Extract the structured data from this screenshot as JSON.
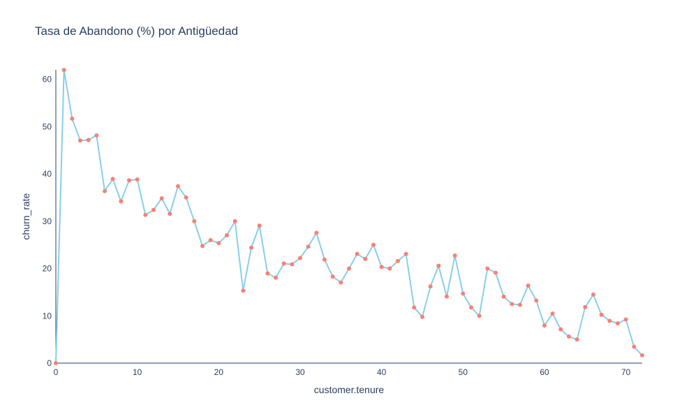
{
  "chart_data": {
    "type": "line",
    "title": "Tasa de Abandono (%) por Antigüedad",
    "xlabel": "customer.tenure",
    "ylabel": "churn_rate",
    "xlim": [
      0,
      72
    ],
    "ylim": [
      0,
      62
    ],
    "x_ticks": [
      0,
      10,
      20,
      30,
      40,
      50,
      60,
      70
    ],
    "y_ticks": [
      0,
      10,
      20,
      30,
      40,
      50,
      60
    ],
    "grid": false,
    "colors": {
      "line": "#87CEEB",
      "marker": "#FA8072",
      "text": "#2a3f5f",
      "axis": "#2a3f5f"
    },
    "x": [
      0,
      1,
      2,
      3,
      4,
      5,
      6,
      7,
      8,
      9,
      10,
      11,
      12,
      13,
      14,
      15,
      16,
      17,
      18,
      19,
      20,
      21,
      22,
      23,
      24,
      25,
      26,
      27,
      28,
      29,
      30,
      31,
      32,
      33,
      34,
      35,
      36,
      37,
      38,
      39,
      40,
      41,
      42,
      43,
      44,
      45,
      46,
      47,
      48,
      49,
      50,
      51,
      52,
      53,
      54,
      55,
      56,
      57,
      58,
      59,
      60,
      61,
      62,
      63,
      64,
      65,
      66,
      67,
      68,
      69,
      70,
      71,
      72
    ],
    "y": [
      0,
      61.99,
      51.68,
      47.06,
      47.16,
      48.15,
      36.36,
      38.93,
      34.19,
      38.64,
      38.82,
      31.34,
      32.39,
      34.84,
      31.55,
      37.4,
      35.0,
      30.0,
      24.77,
      26.0,
      25.38,
      27.03,
      30.0,
      15.32,
      24.42,
      29.07,
      18.97,
      18.06,
      21.05,
      20.88,
      22.22,
      24.63,
      27.55,
      21.88,
      18.29,
      17.05,
      20.0,
      23.08,
      22.03,
      25.0,
      20.34,
      20.0,
      21.57,
      23.08,
      11.76,
      9.78,
      16.22,
      20.59,
      14.07,
      22.73,
      14.71,
      11.76,
      10.0,
      20.0,
      19.12,
      14.04,
      12.5,
      12.33,
      16.39,
      13.24,
      7.95,
      10.48,
      7.14,
      5.62,
      5.0,
      11.82,
      14.5,
      10.22,
      8.94,
      8.42,
      9.23,
      3.46,
      1.66
    ]
  }
}
